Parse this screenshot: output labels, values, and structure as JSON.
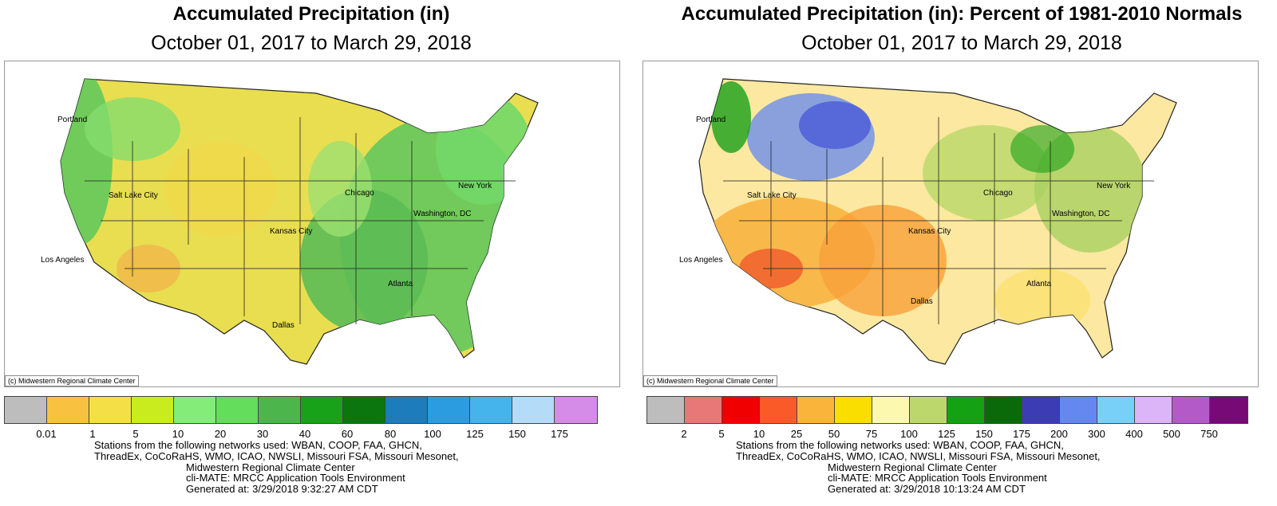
{
  "left": {
    "title": "Accumulated Precipitation (in)",
    "subtitle": "October 01, 2017 to March 29, 2018",
    "copyright": "(c) Midwestern Regional Climate Center",
    "cities": [
      "Portland",
      "Salt Lake City",
      "Chicago",
      "New York",
      "Washington, DC",
      "Kansas City",
      "Los Angeles",
      "Atlanta",
      "Dallas"
    ],
    "legend_colors": [
      "#bdbdbd",
      "#f8c240",
      "#f4e046",
      "#c8ec1e",
      "#84ec78",
      "#64dc5c",
      "#4cb64c",
      "#18a21a",
      "#0c760e",
      "#1c7cbc",
      "#2c9ce0",
      "#46b4ec",
      "#b4dcf8",
      "#d48ce8"
    ],
    "legend_ticks": [
      "0.01",
      "1",
      "5",
      "10",
      "20",
      "30",
      "40",
      "60",
      "80",
      "100",
      "125",
      "150",
      "175"
    ],
    "footer": [
      "Stations from the following networks used: WBAN, COOP, FAA, GHCN,",
      "ThreadEx, CoCoRaHS, WMO, ICAO, NWSLI, Missouri FSA, Missouri Mesonet,",
      "Midwestern Regional Climate Center",
      "cli-MATE: MRCC Application Tools Environment",
      "Generated at: 3/29/2018 9:32:27 AM CDT"
    ]
  },
  "right": {
    "title": "Accumulated Precipitation (in): Percent of 1981-2010 Normals",
    "subtitle": "October 01, 2017 to March 29, 2018",
    "copyright": "(c) Midwestern Regional Climate Center",
    "cities": [
      "Portland",
      "Salt Lake City",
      "Chicago",
      "New York",
      "Washington, DC",
      "Kansas City",
      "Los Angeles",
      "Atlanta",
      "Dallas"
    ],
    "legend_colors": [
      "#bdbdbd",
      "#e87878",
      "#f00000",
      "#fa5a28",
      "#fab43c",
      "#fade00",
      "#fcf8b0",
      "#bcd86c",
      "#14a214",
      "#0a6a0a",
      "#3c3cb4",
      "#6488f0",
      "#78d0f8",
      "#dcb4f8",
      "#b45ac8",
      "#780a78"
    ],
    "legend_ticks": [
      "2",
      "5",
      "10",
      "25",
      "50",
      "75",
      "100",
      "125",
      "150",
      "175",
      "200",
      "300",
      "400",
      "500",
      "750"
    ],
    "footer": [
      "Stations from the following networks used: WBAN, COOP, FAA, GHCN,",
      "ThreadEx, CoCoRaHS, WMO, ICAO, NWSLI, Missouri FSA, Missouri Mesonet,",
      "Midwestern Regional Climate Center",
      "cli-MATE: MRCC Application Tools Environment",
      "Generated at: 3/29/2018 10:13:24 AM CDT"
    ]
  }
}
